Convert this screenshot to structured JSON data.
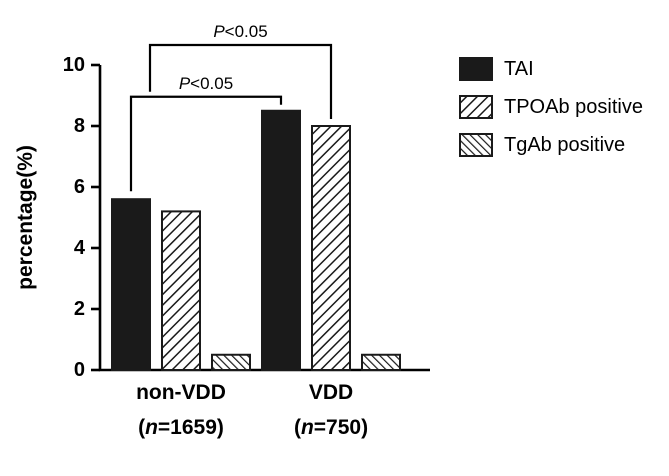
{
  "chart_data": {
    "type": "bar",
    "title": "",
    "xlabel": "",
    "ylabel": "percentage(%)",
    "ylim": [
      0,
      10
    ],
    "yticks": [
      0,
      2,
      4,
      6,
      8,
      10
    ],
    "grid": false,
    "legend_position": "right",
    "groups": [
      {
        "label": "non-VDD",
        "sublabel_open": "(",
        "sublabel_n": "n",
        "sublabel_rest": "=1659)"
      },
      {
        "label": "VDD",
        "sublabel_open": "(",
        "sublabel_n": "n",
        "sublabel_rest": "=750)"
      }
    ],
    "series": [
      {
        "name": "TAI",
        "fill": "solid",
        "values": [
          5.6,
          8.5
        ]
      },
      {
        "name": "TPOAb positive",
        "fill": "hatch-forward",
        "values": [
          5.2,
          8.0
        ]
      },
      {
        "name": "TgAb positive",
        "fill": "hatch-back",
        "values": [
          0.5,
          0.5
        ]
      }
    ],
    "annotations": [
      {
        "p_italic": "P",
        "p_rest": "<0.05",
        "series": "TAI",
        "between": [
          "non-VDD",
          "VDD"
        ]
      },
      {
        "p_italic": "P",
        "p_rest": "<0.05",
        "series": "TPOAb positive",
        "between": [
          "non-VDD",
          "VDD"
        ]
      }
    ],
    "colors": {
      "bar": "#1a1a1a",
      "axis": "#000000",
      "background": "#ffffff"
    }
  }
}
